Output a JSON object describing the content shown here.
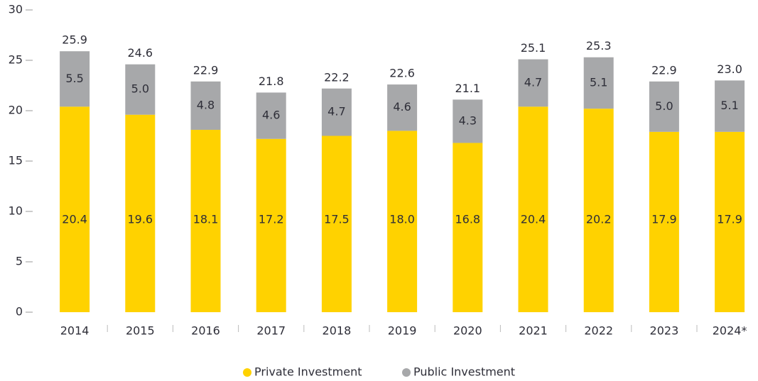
{
  "chart_data": {
    "type": "stacked_bar",
    "categories": [
      "2014",
      "2015",
      "2016",
      "2017",
      "2018",
      "2019",
      "2020",
      "2021",
      "2022",
      "2023",
      "2024*"
    ],
    "series": [
      {
        "name": "Private Investment",
        "color": "#FFD200",
        "values": [
          20.4,
          19.6,
          18.1,
          17.2,
          17.5,
          18.0,
          16.8,
          20.4,
          20.2,
          17.9,
          17.9
        ],
        "value_labels": [
          "20.4",
          "19.6",
          "18.1",
          "17.2",
          "17.5",
          "18.0",
          "16.8",
          "20.4",
          "20.2",
          "17.9",
          "17.9"
        ]
      },
      {
        "name": "Public Investment",
        "color": "#A7A8AA",
        "values": [
          5.5,
          5.0,
          4.8,
          4.6,
          4.7,
          4.6,
          4.3,
          4.7,
          5.1,
          5.0,
          5.1
        ],
        "value_labels": [
          "5.5",
          "5.0",
          "4.8",
          "4.6",
          "4.7",
          "4.6",
          "4.3",
          "4.7",
          "5.1",
          "5.0",
          "5.1"
        ]
      }
    ],
    "totals": {
      "values": [
        25.9,
        24.6,
        22.9,
        21.8,
        22.2,
        22.6,
        21.1,
        25.1,
        25.3,
        22.9,
        23.0
      ],
      "value_labels": [
        "25.9",
        "24.6",
        "22.9",
        "21.8",
        "22.2",
        "22.6",
        "21.1",
        "25.1",
        "25.3",
        "22.9",
        "23.0"
      ]
    },
    "ylim": [
      0,
      30
    ],
    "yticks": [
      0,
      5,
      10,
      15,
      20,
      25,
      30
    ],
    "grid": false,
    "legend": "bottom"
  }
}
